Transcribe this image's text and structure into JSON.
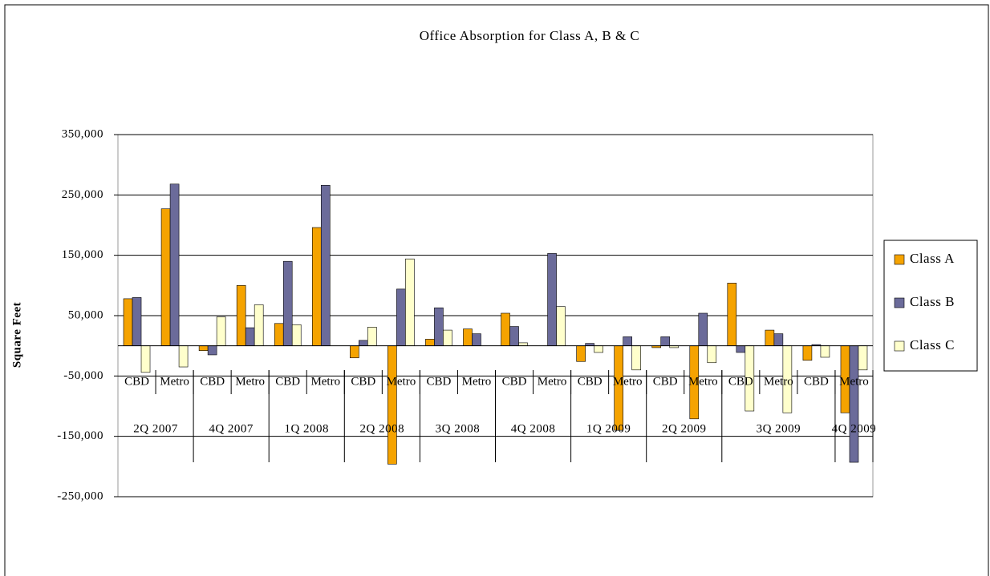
{
  "chart_data": {
    "type": "bar",
    "title": "Office Absorption for Class A, B & C",
    "y_label": "Square Feet",
    "categories": [
      "CBD",
      "Metro",
      "CBD",
      "Metro",
      "CBD",
      "Metro",
      "CBD",
      "Metro",
      "CBD",
      "Metro",
      "CBD",
      "Metro",
      "CBD",
      "Metro",
      "CBD",
      "Metro",
      "CBD",
      "Metro",
      "CBD",
      "Metro"
    ],
    "category_groups": [
      {
        "label": "2Q 2007",
        "count": 2
      },
      {
        "label": "4Q 2007",
        "count": 2
      },
      {
        "label": "1Q 2008",
        "count": 2
      },
      {
        "label": "2Q 2008",
        "count": 2
      },
      {
        "label": "3Q 2008",
        "count": 2
      },
      {
        "label": "4Q 2008",
        "count": 2
      },
      {
        "label": "1Q 2009",
        "count": 2
      },
      {
        "label": "2Q 2009",
        "count": 2
      },
      {
        "label": "3Q 2009",
        "count": 3
      },
      {
        "label": "4Q 2009",
        "count": 1
      }
    ],
    "series": [
      {
        "name": "Class A",
        "color": "#f5a300",
        "values": [
          78000,
          227000,
          -8000,
          100000,
          37000,
          196000,
          -20000,
          -196000,
          11000,
          28000,
          54000,
          0,
          -26000,
          -140000,
          -3000,
          -121000,
          104000,
          26000,
          -24000,
          -111000
        ]
      },
      {
        "name": "Class B",
        "color": "#6b6b9a",
        "values": [
          80000,
          268000,
          -15000,
          30000,
          140000,
          266000,
          9000,
          94000,
          63000,
          20000,
          32000,
          153000,
          4000,
          15000,
          15000,
          54000,
          -11000,
          20000,
          2000,
          -193000
        ]
      },
      {
        "name": "Class C",
        "color": "#ffffcc",
        "values": [
          -44000,
          -35000,
          48000,
          68000,
          35000,
          0,
          31000,
          144000,
          26000,
          0,
          5000,
          65000,
          -11000,
          -40000,
          -3000,
          -28000,
          -108000,
          -111000,
          -19000,
          -40000
        ]
      }
    ],
    "ylim": [
      -250000,
      350000
    ],
    "yticks": [
      {
        "value": -250000,
        "label": "-250,000"
      },
      {
        "value": -150000,
        "label": "-150,000"
      },
      {
        "value": -50000,
        "label": "-50,000"
      },
      {
        "value": 50000,
        "label": "50,000"
      },
      {
        "value": 150000,
        "label": "150,000"
      },
      {
        "value": 250000,
        "label": "250,000"
      },
      {
        "value": 350000,
        "label": "350,000"
      }
    ],
    "grid": true,
    "legend": "right"
  }
}
